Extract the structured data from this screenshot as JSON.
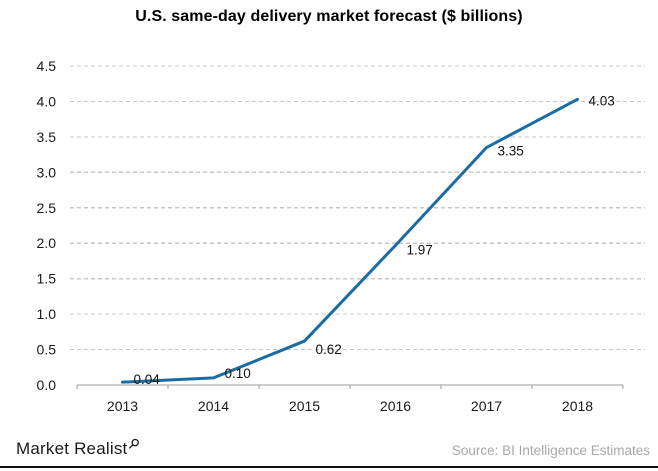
{
  "chart_data": {
    "type": "line",
    "title": "U.S. same-day delivery market forecast ($ billions)",
    "categories": [
      "2013",
      "2014",
      "2015",
      "2016",
      "2017",
      "2018"
    ],
    "values": [
      0.04,
      0.1,
      0.62,
      1.97,
      3.35,
      4.03
    ],
    "point_labels": [
      "0.04",
      "0.10",
      "0.62",
      "1.97",
      "3.35",
      "4.03"
    ],
    "xlabel": "",
    "ylabel": "",
    "ylim": [
      0,
      4.5
    ],
    "ytick_labels": [
      "0.0",
      "0.5",
      "1.0",
      "1.5",
      "2.0",
      "2.5",
      "3.0",
      "3.5",
      "4.0",
      "4.5"
    ],
    "grid": "dashed-horizontal",
    "legend": "none",
    "point_label_dy": [
      -3,
      -5,
      8,
      4,
      3,
      1
    ]
  },
  "footer": {
    "brand": "Market Realist",
    "source": "Source: BI Intelligence Estimates"
  },
  "colors": {
    "line": "#1b6ca3",
    "grid": "#c7c7c7",
    "axis": "#9b9b9b",
    "tick_text": "#1a1a1a",
    "source_text": "#a8a8a8",
    "footer_bar": "#111111"
  }
}
